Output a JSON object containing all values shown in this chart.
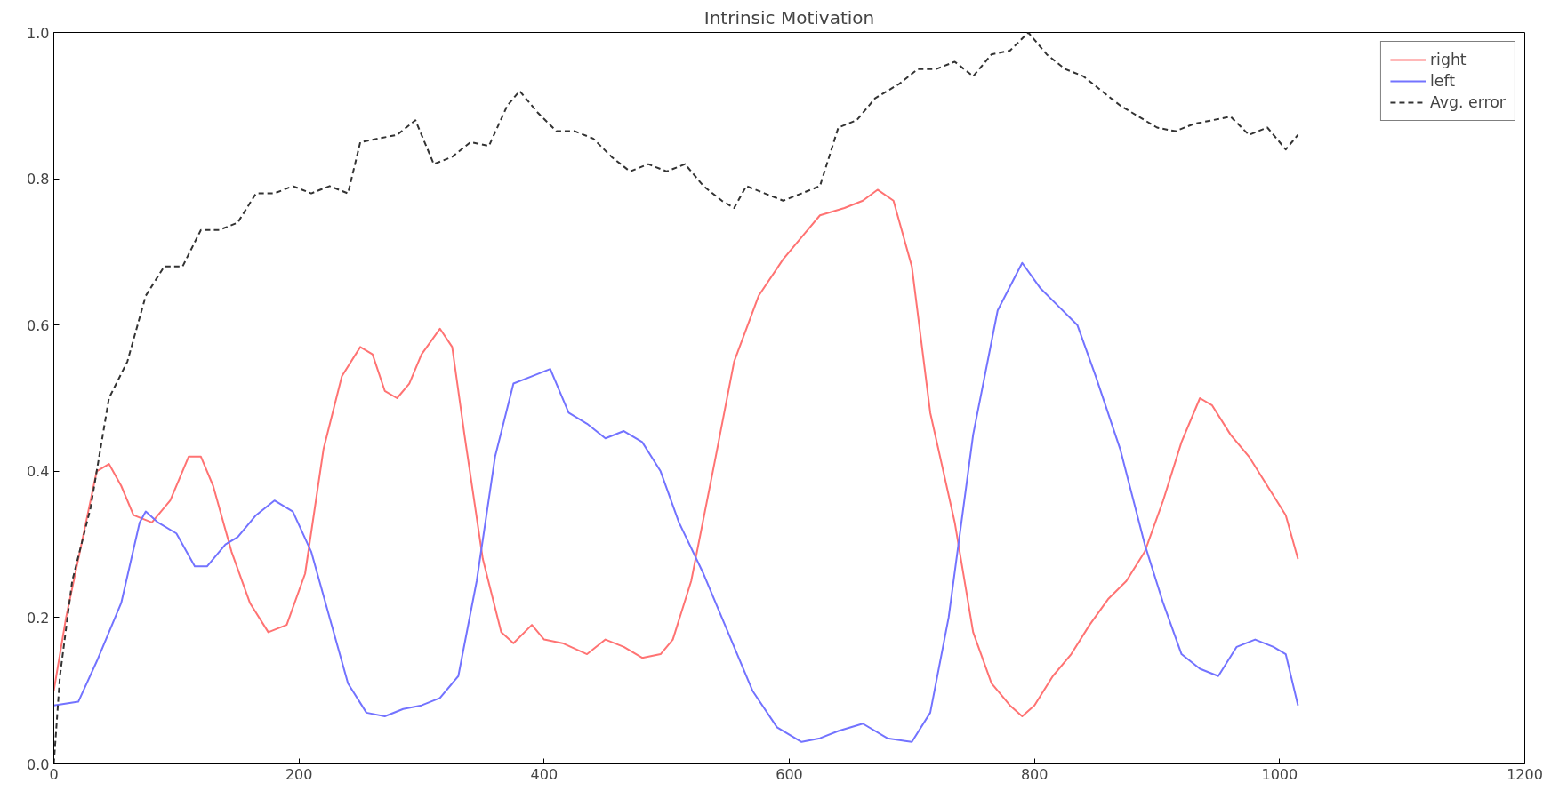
{
  "chart_data": {
    "type": "line",
    "title": "Intrinsic Motivation",
    "xlim": [
      0,
      1200
    ],
    "ylim": [
      0,
      1.0
    ],
    "xticks": [
      0,
      200,
      400,
      600,
      800,
      1000,
      1200
    ],
    "yticks": [
      {
        "value": 0,
        "label": "0.0"
      },
      0.2,
      0.4,
      0.6,
      0.8,
      {
        "value": 1,
        "label": "1.0"
      }
    ],
    "grid": false,
    "legend": "top right",
    "marker": "none",
    "series": [
      {
        "name": "right",
        "color": "#ff7373",
        "line_style": "solid",
        "x": [
          0,
          10,
          25,
          35,
          45,
          55,
          65,
          80,
          95,
          110,
          120,
          130,
          145,
          160,
          175,
          190,
          205,
          220,
          235,
          250,
          260,
          270,
          280,
          290,
          300,
          315,
          325,
          335,
          350,
          365,
          375,
          390,
          400,
          415,
          435,
          450,
          465,
          480,
          495,
          505,
          520,
          540,
          555,
          575,
          595,
          610,
          625,
          645,
          660,
          672,
          685,
          700,
          715,
          735,
          750,
          765,
          780,
          790,
          800,
          815,
          830,
          845,
          860,
          875,
          890,
          905,
          920,
          935,
          945,
          960,
          975,
          990,
          1005,
          1015
        ],
        "values": [
          0.1,
          0.2,
          0.32,
          0.4,
          0.41,
          0.38,
          0.34,
          0.33,
          0.36,
          0.42,
          0.42,
          0.38,
          0.29,
          0.22,
          0.18,
          0.19,
          0.26,
          0.43,
          0.53,
          0.57,
          0.56,
          0.51,
          0.5,
          0.52,
          0.56,
          0.595,
          0.57,
          0.45,
          0.28,
          0.18,
          0.165,
          0.19,
          0.17,
          0.165,
          0.15,
          0.17,
          0.16,
          0.145,
          0.15,
          0.17,
          0.25,
          0.42,
          0.55,
          0.64,
          0.69,
          0.72,
          0.75,
          0.76,
          0.77,
          0.785,
          0.77,
          0.68,
          0.48,
          0.33,
          0.18,
          0.11,
          0.08,
          0.065,
          0.08,
          0.12,
          0.15,
          0.19,
          0.225,
          0.25,
          0.29,
          0.36,
          0.44,
          0.5,
          0.49,
          0.45,
          0.42,
          0.38,
          0.34,
          0.28
        ]
      },
      {
        "name": "left",
        "color": "#7373ff",
        "line_style": "solid",
        "x": [
          0,
          20,
          35,
          55,
          70,
          75,
          85,
          100,
          115,
          125,
          140,
          150,
          165,
          180,
          195,
          210,
          225,
          240,
          255,
          270,
          285,
          300,
          315,
          330,
          345,
          360,
          375,
          390,
          405,
          420,
          435,
          450,
          465,
          480,
          495,
          510,
          530,
          550,
          570,
          590,
          610,
          625,
          640,
          660,
          680,
          700,
          715,
          730,
          750,
          770,
          790,
          805,
          820,
          835,
          850,
          870,
          890,
          905,
          920,
          935,
          950,
          965,
          980,
          995,
          1005,
          1015
        ],
        "values": [
          0.08,
          0.085,
          0.14,
          0.22,
          0.33,
          0.345,
          0.33,
          0.315,
          0.27,
          0.27,
          0.3,
          0.31,
          0.34,
          0.36,
          0.345,
          0.29,
          0.2,
          0.11,
          0.07,
          0.065,
          0.075,
          0.08,
          0.09,
          0.12,
          0.25,
          0.42,
          0.52,
          0.53,
          0.54,
          0.48,
          0.465,
          0.445,
          0.455,
          0.44,
          0.4,
          0.33,
          0.26,
          0.18,
          0.1,
          0.05,
          0.03,
          0.035,
          0.045,
          0.055,
          0.035,
          0.03,
          0.07,
          0.2,
          0.45,
          0.62,
          0.685,
          0.65,
          0.625,
          0.6,
          0.53,
          0.43,
          0.3,
          0.22,
          0.15,
          0.13,
          0.12,
          0.16,
          0.17,
          0.16,
          0.15,
          0.08
        ]
      },
      {
        "name": "Avg. error",
        "color": "#333333",
        "line_style": "dashed",
        "x": [
          0,
          5,
          15,
          30,
          45,
          60,
          75,
          90,
          105,
          120,
          135,
          150,
          165,
          180,
          195,
          210,
          225,
          240,
          250,
          265,
          280,
          295,
          310,
          325,
          340,
          355,
          370,
          380,
          395,
          410,
          425,
          440,
          455,
          470,
          485,
          500,
          515,
          530,
          545,
          555,
          565,
          580,
          595,
          610,
          625,
          640,
          655,
          670,
          690,
          705,
          720,
          735,
          750,
          765,
          780,
          795,
          810,
          825,
          840,
          855,
          870,
          885,
          900,
          915,
          930,
          945,
          960,
          975,
          990,
          1005,
          1015
        ],
        "values": [
          0.0,
          0.12,
          0.25,
          0.35,
          0.5,
          0.55,
          0.64,
          0.68,
          0.68,
          0.73,
          0.73,
          0.74,
          0.78,
          0.78,
          0.79,
          0.78,
          0.79,
          0.78,
          0.85,
          0.855,
          0.86,
          0.88,
          0.82,
          0.83,
          0.85,
          0.845,
          0.9,
          0.92,
          0.89,
          0.865,
          0.865,
          0.855,
          0.83,
          0.81,
          0.82,
          0.81,
          0.82,
          0.79,
          0.77,
          0.76,
          0.79,
          0.78,
          0.77,
          0.78,
          0.79,
          0.87,
          0.88,
          0.91,
          0.93,
          0.95,
          0.95,
          0.96,
          0.94,
          0.97,
          0.975,
          1.0,
          0.97,
          0.95,
          0.94,
          0.92,
          0.9,
          0.885,
          0.87,
          0.865,
          0.875,
          0.88,
          0.885,
          0.86,
          0.87,
          0.84,
          0.86
        ]
      }
    ]
  }
}
